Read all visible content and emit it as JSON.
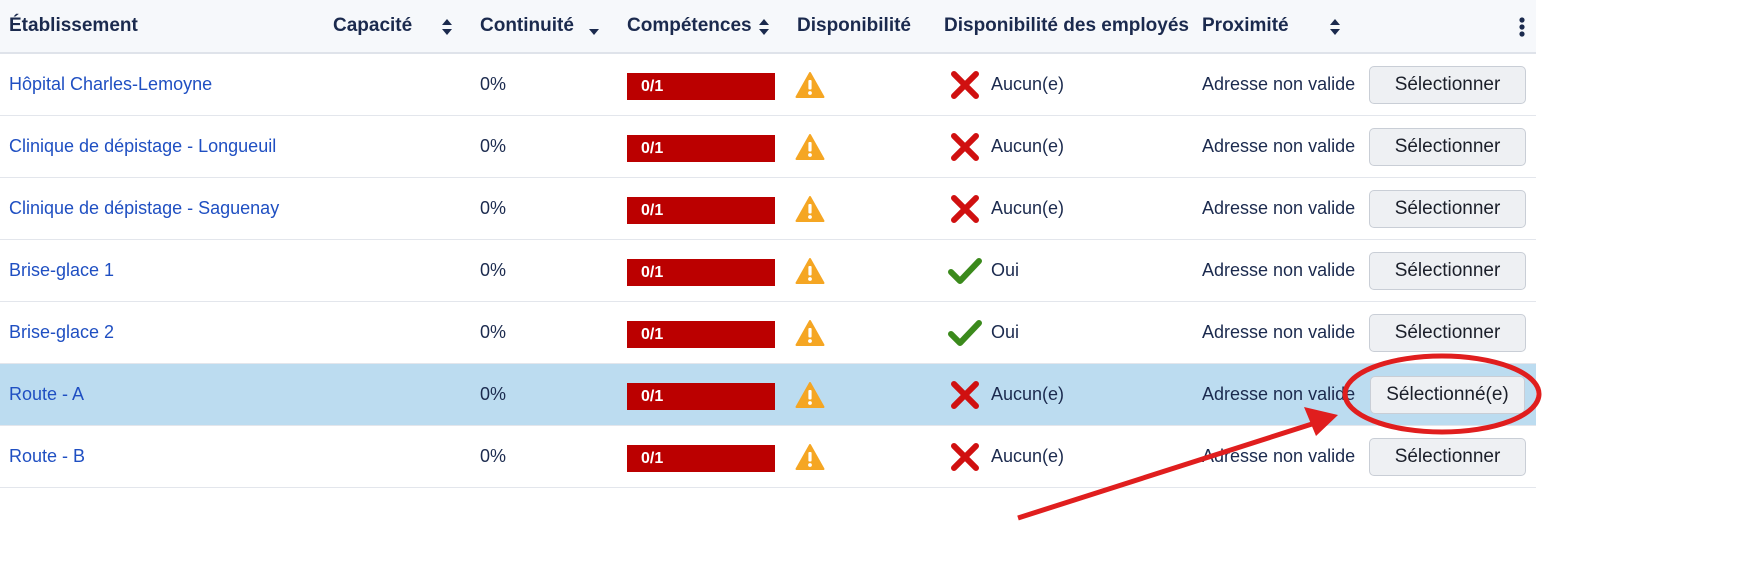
{
  "columns": {
    "establishment": "Établissement",
    "capacity": "Capacité",
    "continuity": "Continuité",
    "skills": "Compétences",
    "availability": "Disponibilité",
    "employee_availability": "Disponibilité des employés",
    "proximity": "Proximité"
  },
  "rows": [
    {
      "name": "Hôpital Charles-Lemoyne",
      "continuity": "0%",
      "skills": "0/1",
      "availability_icon": "warning-icon",
      "employee_status_icon": "cross-icon",
      "employee_status": "Aucun(e)",
      "proximity": "Adresse non valide",
      "action": "Sélectionner"
    },
    {
      "name": "Clinique de dépistage - Longueuil",
      "continuity": "0%",
      "skills": "0/1",
      "availability_icon": "warning-icon",
      "employee_status_icon": "cross-icon",
      "employee_status": "Aucun(e)",
      "proximity": "Adresse non valide",
      "action": "Sélectionner"
    },
    {
      "name": "Clinique de dépistage - Saguenay",
      "continuity": "0%",
      "skills": "0/1",
      "availability_icon": "warning-icon",
      "employee_status_icon": "cross-icon",
      "employee_status": "Aucun(e)",
      "proximity": "Adresse non valide",
      "action": "Sélectionner"
    },
    {
      "name": "Brise-glace 1",
      "continuity": "0%",
      "skills": "0/1",
      "availability_icon": "warning-icon",
      "employee_status_icon": "check-icon",
      "employee_status": "Oui",
      "proximity": "Adresse non valide",
      "action": "Sélectionner"
    },
    {
      "name": "Brise-glace 2",
      "continuity": "0%",
      "skills": "0/1",
      "availability_icon": "warning-icon",
      "employee_status_icon": "check-icon",
      "employee_status": "Oui",
      "proximity": "Adresse non valide",
      "action": "Sélectionner"
    },
    {
      "name": "Route - A",
      "continuity": "0%",
      "skills": "0/1",
      "availability_icon": "warning-icon",
      "employee_status_icon": "cross-icon",
      "employee_status": "Aucun(e)",
      "proximity": "Adresse non valide",
      "action": "Sélectionné(e)",
      "selected": true
    },
    {
      "name": "Route - B",
      "continuity": "0%",
      "skills": "0/1",
      "availability_icon": "warning-icon",
      "employee_status_icon": "cross-icon",
      "employee_status": "Aucun(e)",
      "proximity": "Adresse non valide",
      "action": "Sélectionner"
    }
  ],
  "icons": {
    "sort": "sort-icon",
    "sort_desc": "sort-desc-icon",
    "menu": "kebab-menu-icon"
  },
  "colors": {
    "link": "#1f4fc2",
    "skills_badge": "#bb0000",
    "warning": "#f5a623",
    "cross": "#d01010",
    "check": "#3b8a1c",
    "selected_row": "#bcdcf0",
    "annotation": "#e01e1e"
  }
}
